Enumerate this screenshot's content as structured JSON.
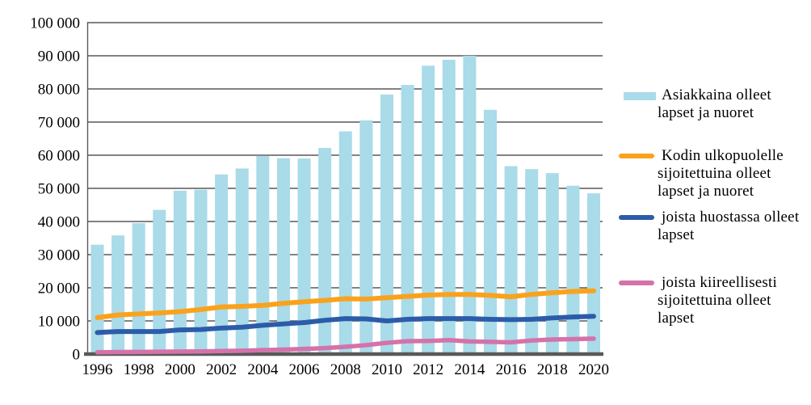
{
  "chart_data": {
    "type": "bar+line",
    "title": "",
    "xlabel": "",
    "ylabel": "",
    "ylim": [
      0,
      100000
    ],
    "grid": "horizontal",
    "legend_position": "right",
    "years": [
      1996,
      1997,
      1998,
      1999,
      2000,
      2001,
      2002,
      2003,
      2004,
      2005,
      2006,
      2007,
      2008,
      2009,
      2010,
      2011,
      2012,
      2013,
      2014,
      2015,
      2016,
      2017,
      2018,
      2019,
      2020
    ],
    "x_ticks": [
      "1996",
      "1998",
      "2000",
      "2002",
      "2004",
      "2006",
      "2008",
      "2010",
      "2012",
      "2014",
      "2016",
      "2018",
      "2020"
    ],
    "y_ticks": [
      "100 000",
      "90 000",
      "80 000",
      "70 000",
      "60 000",
      "50 000",
      "40 000",
      "30 000",
      "20 000",
      "10 000",
      "0"
    ],
    "y_tick_values": [
      100000,
      90000,
      80000,
      70000,
      60000,
      50000,
      40000,
      30000,
      20000,
      10000,
      0
    ],
    "series": [
      {
        "name": "Asiakkaina olleet lapset ja nuoret",
        "kind": "bar",
        "color": "#A9DBE9",
        "values": [
          33000,
          35800,
          39500,
          43500,
          49300,
          49600,
          54200,
          56000,
          59800,
          59100,
          59000,
          62200,
          67200,
          70500,
          78300,
          81200,
          87000,
          88800,
          90000,
          73700,
          56700,
          55800,
          54600,
          50800,
          48500
        ]
      },
      {
        "name": "Kodin ulkopuolelle sijoitettuina olleet lapset ja nuoret",
        "kind": "line",
        "color": "#FAA21C",
        "values": [
          11000,
          11800,
          12100,
          12400,
          12800,
          13450,
          14200,
          14400,
          14700,
          15300,
          15800,
          16200,
          16700,
          16600,
          17000,
          17400,
          17800,
          18000,
          18000,
          17700,
          17300,
          18000,
          18500,
          18900,
          19100
        ]
      },
      {
        "name": "joista huostassa olleet lapset",
        "kind": "line",
        "color": "#2C5CA9",
        "values": [
          6500,
          6800,
          6800,
          6800,
          7300,
          7400,
          7850,
          8100,
          8700,
          9100,
          9500,
          10200,
          10700,
          10600,
          10000,
          10500,
          10700,
          10700,
          10700,
          10500,
          10400,
          10500,
          10900,
          11200,
          11400
        ]
      },
      {
        "name": "joista kiireellisesti sijoitettuina olleet lapset",
        "kind": "line",
        "color": "#D572AA",
        "values": [
          550,
          600,
          650,
          700,
          750,
          800,
          900,
          1000,
          1200,
          1350,
          1550,
          1800,
          2200,
          2700,
          3400,
          3900,
          3950,
          4200,
          3800,
          3700,
          3550,
          4100,
          4400,
          4500,
          4650
        ]
      }
    ],
    "colors": {
      "gridline": "#595959",
      "axis": "#595959",
      "text": "#000000",
      "background": "#ffffff"
    }
  },
  "legend": {
    "items": [
      {
        "swatch": "bar",
        "lines": [
          "Asiakkaina olleet",
          "lapset ja nuoret"
        ]
      },
      {
        "swatch": "line-orange",
        "lines": [
          "Kodin ulkopuolelle",
          "sijoitettuina olleet",
          "lapset ja nuoret"
        ]
      },
      {
        "swatch": "line-blue",
        "lines": [
          "joista huostassa olleet",
          "lapset"
        ]
      },
      {
        "swatch": "line-pink",
        "lines": [
          "joista kiireellisesti",
          "sijoitettuina olleet",
          "lapset"
        ]
      }
    ]
  }
}
